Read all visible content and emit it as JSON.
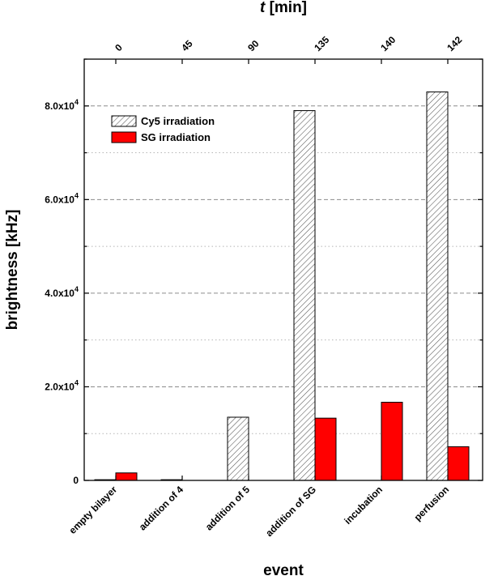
{
  "chart_data": {
    "type": "bar",
    "title": "",
    "xlabel": "event",
    "ylabel": "brightness [kHz]",
    "top_axis_label": "t [min]",
    "categories": [
      "empty bilayer",
      "addition of 4",
      "addition of 5",
      "addition of SG",
      "incubation",
      "perfusion"
    ],
    "top_ticks": [
      "0",
      "45",
      "90",
      "135",
      "140",
      "142"
    ],
    "ylim": [
      0,
      90000
    ],
    "yticks": [
      {
        "value": 0,
        "base": "0",
        "exp": ""
      },
      {
        "value": 20000,
        "base": "2.0x10",
        "exp": "4"
      },
      {
        "value": 40000,
        "base": "4.0x10",
        "exp": "4"
      },
      {
        "value": 60000,
        "base": "6.0x10",
        "exp": "4"
      },
      {
        "value": 80000,
        "base": "8.0x10",
        "exp": "4"
      }
    ],
    "grid": true,
    "legend_position": "top-left",
    "series": [
      {
        "name": "Cy5 irradiation",
        "style": "hatched",
        "values": [
          150,
          150,
          13500,
          79000,
          0,
          83000
        ]
      },
      {
        "name": "SG irradiation",
        "style": "red",
        "values": [
          1600,
          0,
          0,
          13300,
          16700,
          7200
        ]
      }
    ],
    "colors": {
      "sg": "#ff0000",
      "hatch": "#555555",
      "axis": "#000000",
      "grid": "#999999"
    }
  }
}
